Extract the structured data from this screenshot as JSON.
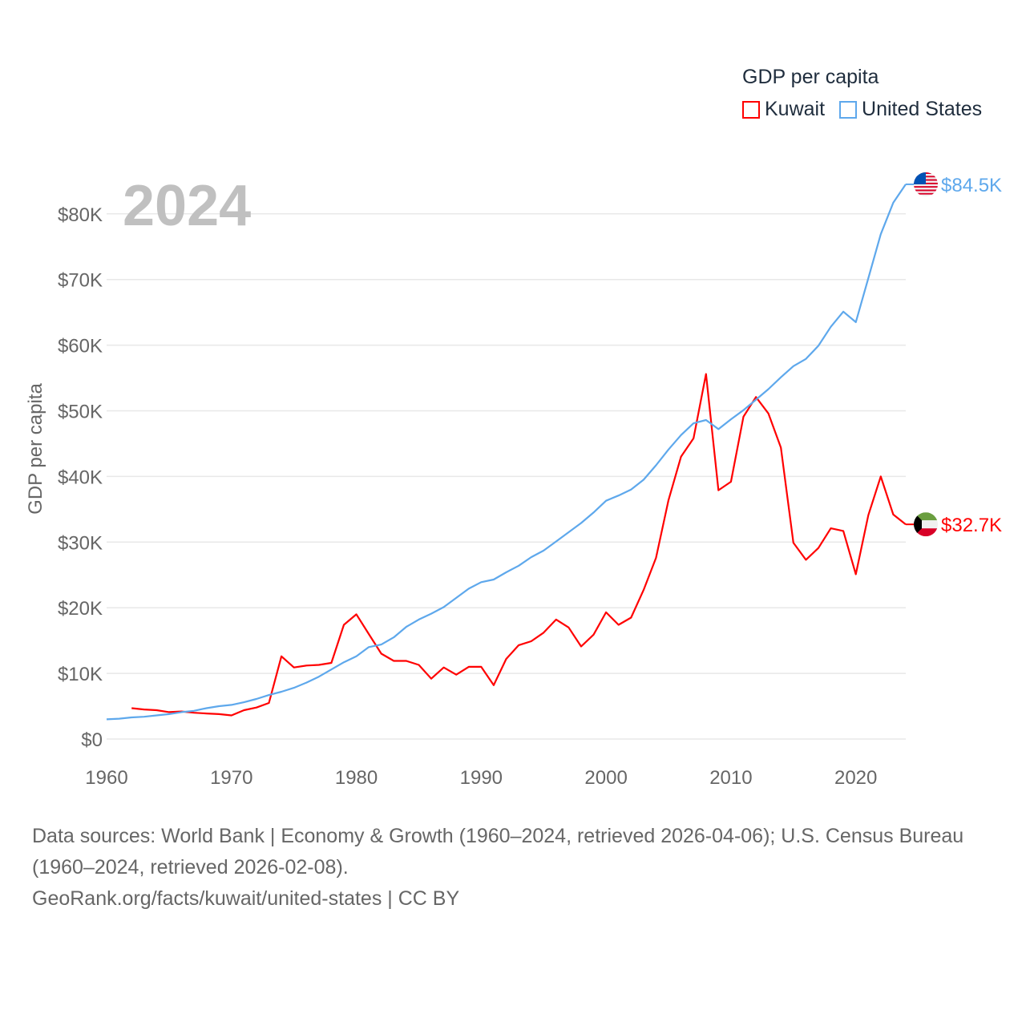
{
  "chart_data": {
    "type": "line",
    "title": "GDP per capita",
    "year_label": "2024",
    "xlabel": "",
    "ylabel": "GDP per capita",
    "xlim": [
      1960,
      2024
    ],
    "ylim": [
      0,
      85000
    ],
    "x_ticks": [
      1960,
      1970,
      1980,
      1990,
      2000,
      2010,
      2020
    ],
    "x_tick_labels": [
      "1960",
      "1970",
      "1980",
      "1990",
      "2000",
      "2010",
      "2020"
    ],
    "y_ticks": [
      0,
      10000,
      20000,
      30000,
      40000,
      50000,
      60000,
      70000,
      80000
    ],
    "y_tick_labels": [
      "$0",
      "$10K",
      "$20K",
      "$30K",
      "$40K",
      "$50K",
      "$60K",
      "$70K",
      "$80K"
    ],
    "grid": true,
    "legend_position": "top-right",
    "series": [
      {
        "name": "Kuwait",
        "color": "#ff0000",
        "flag_icon": "kuwait-flag-icon",
        "end_label": "$32.7K",
        "start_year": 1962,
        "values": [
          4700,
          4500,
          4400,
          4100,
          4200,
          4000,
          3900,
          3800,
          3600,
          4400,
          4800,
          5500,
          12600,
          10900,
          11200,
          11300,
          11600,
          17400,
          19000,
          16000,
          13000,
          11900,
          11900,
          11300,
          9200,
          10900,
          9800,
          11000,
          11000,
          8200,
          12200,
          14300,
          14900,
          16200,
          18200,
          17000,
          14100,
          15900,
          19300,
          17400,
          18500,
          22700,
          27600,
          36400,
          43000,
          45800,
          55600,
          37900,
          39200,
          49100,
          52100,
          49600,
          44400,
          29900,
          27300,
          29100,
          32100,
          31700,
          25100,
          34100,
          40000,
          34200,
          32700
        ]
      },
      {
        "name": "United States",
        "color": "#5ea8ec",
        "flag_icon": "united-states-flag-icon",
        "end_label": "$84.5K",
        "start_year": 1960,
        "values": [
          3000,
          3100,
          3300,
          3400,
          3600,
          3800,
          4100,
          4300,
          4700,
          5000,
          5200,
          5600,
          6100,
          6700,
          7200,
          7800,
          8600,
          9500,
          10600,
          11700,
          12600,
          14000,
          14400,
          15500,
          17100,
          18200,
          19100,
          20100,
          21500,
          22900,
          23900,
          24300,
          25400,
          26400,
          27700,
          28700,
          30100,
          31500,
          32900,
          34500,
          36300,
          37100,
          38000,
          39500,
          41700,
          44100,
          46300,
          48100,
          48600,
          47200,
          48700,
          50100,
          51700,
          53300,
          55100,
          56800,
          57900,
          59900,
          62800,
          65100,
          63500,
          70200,
          76900,
          81700,
          84500
        ]
      }
    ]
  },
  "footer": {
    "sources": "Data sources: World Bank | Economy & Growth (1960–2024, retrieved 2026-04-06); U.S. Census Bureau (1960–2024, retrieved 2026-02-08).",
    "credit": "GeoRank.org/facts/kuwait/united-states | CC BY"
  }
}
